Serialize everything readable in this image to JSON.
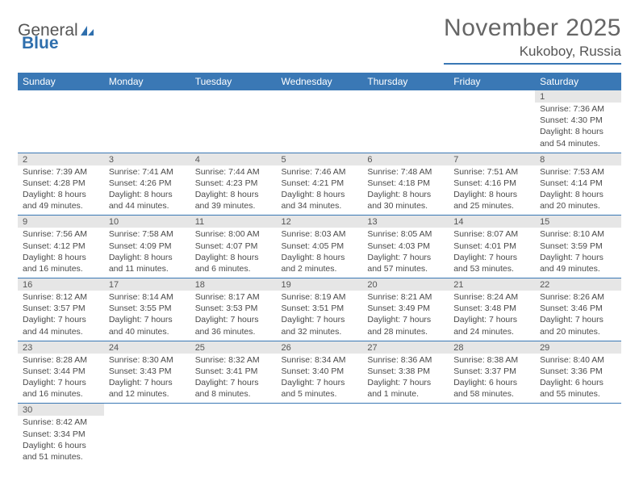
{
  "logo": {
    "part1": "General",
    "part2": "Blue"
  },
  "title": "November 2025",
  "location": "Kukoboy, Russia",
  "colors": {
    "header_bg": "#3a78b5",
    "header_text": "#ffffff",
    "daynum_bg": "#e6e6e6",
    "border": "#3a78b5",
    "text": "#4a4a4a"
  },
  "weekdays": [
    "Sunday",
    "Monday",
    "Tuesday",
    "Wednesday",
    "Thursday",
    "Friday",
    "Saturday"
  ],
  "weeks": [
    [
      null,
      null,
      null,
      null,
      null,
      null,
      {
        "n": "1",
        "sr": "Sunrise: 7:36 AM",
        "ss": "Sunset: 4:30 PM",
        "dl": "Daylight: 8 hours and 54 minutes."
      }
    ],
    [
      {
        "n": "2",
        "sr": "Sunrise: 7:39 AM",
        "ss": "Sunset: 4:28 PM",
        "dl": "Daylight: 8 hours and 49 minutes."
      },
      {
        "n": "3",
        "sr": "Sunrise: 7:41 AM",
        "ss": "Sunset: 4:26 PM",
        "dl": "Daylight: 8 hours and 44 minutes."
      },
      {
        "n": "4",
        "sr": "Sunrise: 7:44 AM",
        "ss": "Sunset: 4:23 PM",
        "dl": "Daylight: 8 hours and 39 minutes."
      },
      {
        "n": "5",
        "sr": "Sunrise: 7:46 AM",
        "ss": "Sunset: 4:21 PM",
        "dl": "Daylight: 8 hours and 34 minutes."
      },
      {
        "n": "6",
        "sr": "Sunrise: 7:48 AM",
        "ss": "Sunset: 4:18 PM",
        "dl": "Daylight: 8 hours and 30 minutes."
      },
      {
        "n": "7",
        "sr": "Sunrise: 7:51 AM",
        "ss": "Sunset: 4:16 PM",
        "dl": "Daylight: 8 hours and 25 minutes."
      },
      {
        "n": "8",
        "sr": "Sunrise: 7:53 AM",
        "ss": "Sunset: 4:14 PM",
        "dl": "Daylight: 8 hours and 20 minutes."
      }
    ],
    [
      {
        "n": "9",
        "sr": "Sunrise: 7:56 AM",
        "ss": "Sunset: 4:12 PM",
        "dl": "Daylight: 8 hours and 16 minutes."
      },
      {
        "n": "10",
        "sr": "Sunrise: 7:58 AM",
        "ss": "Sunset: 4:09 PM",
        "dl": "Daylight: 8 hours and 11 minutes."
      },
      {
        "n": "11",
        "sr": "Sunrise: 8:00 AM",
        "ss": "Sunset: 4:07 PM",
        "dl": "Daylight: 8 hours and 6 minutes."
      },
      {
        "n": "12",
        "sr": "Sunrise: 8:03 AM",
        "ss": "Sunset: 4:05 PM",
        "dl": "Daylight: 8 hours and 2 minutes."
      },
      {
        "n": "13",
        "sr": "Sunrise: 8:05 AM",
        "ss": "Sunset: 4:03 PM",
        "dl": "Daylight: 7 hours and 57 minutes."
      },
      {
        "n": "14",
        "sr": "Sunrise: 8:07 AM",
        "ss": "Sunset: 4:01 PM",
        "dl": "Daylight: 7 hours and 53 minutes."
      },
      {
        "n": "15",
        "sr": "Sunrise: 8:10 AM",
        "ss": "Sunset: 3:59 PM",
        "dl": "Daylight: 7 hours and 49 minutes."
      }
    ],
    [
      {
        "n": "16",
        "sr": "Sunrise: 8:12 AM",
        "ss": "Sunset: 3:57 PM",
        "dl": "Daylight: 7 hours and 44 minutes."
      },
      {
        "n": "17",
        "sr": "Sunrise: 8:14 AM",
        "ss": "Sunset: 3:55 PM",
        "dl": "Daylight: 7 hours and 40 minutes."
      },
      {
        "n": "18",
        "sr": "Sunrise: 8:17 AM",
        "ss": "Sunset: 3:53 PM",
        "dl": "Daylight: 7 hours and 36 minutes."
      },
      {
        "n": "19",
        "sr": "Sunrise: 8:19 AM",
        "ss": "Sunset: 3:51 PM",
        "dl": "Daylight: 7 hours and 32 minutes."
      },
      {
        "n": "20",
        "sr": "Sunrise: 8:21 AM",
        "ss": "Sunset: 3:49 PM",
        "dl": "Daylight: 7 hours and 28 minutes."
      },
      {
        "n": "21",
        "sr": "Sunrise: 8:24 AM",
        "ss": "Sunset: 3:48 PM",
        "dl": "Daylight: 7 hours and 24 minutes."
      },
      {
        "n": "22",
        "sr": "Sunrise: 8:26 AM",
        "ss": "Sunset: 3:46 PM",
        "dl": "Daylight: 7 hours and 20 minutes."
      }
    ],
    [
      {
        "n": "23",
        "sr": "Sunrise: 8:28 AM",
        "ss": "Sunset: 3:44 PM",
        "dl": "Daylight: 7 hours and 16 minutes."
      },
      {
        "n": "24",
        "sr": "Sunrise: 8:30 AM",
        "ss": "Sunset: 3:43 PM",
        "dl": "Daylight: 7 hours and 12 minutes."
      },
      {
        "n": "25",
        "sr": "Sunrise: 8:32 AM",
        "ss": "Sunset: 3:41 PM",
        "dl": "Daylight: 7 hours and 8 minutes."
      },
      {
        "n": "26",
        "sr": "Sunrise: 8:34 AM",
        "ss": "Sunset: 3:40 PM",
        "dl": "Daylight: 7 hours and 5 minutes."
      },
      {
        "n": "27",
        "sr": "Sunrise: 8:36 AM",
        "ss": "Sunset: 3:38 PM",
        "dl": "Daylight: 7 hours and 1 minute."
      },
      {
        "n": "28",
        "sr": "Sunrise: 8:38 AM",
        "ss": "Sunset: 3:37 PM",
        "dl": "Daylight: 6 hours and 58 minutes."
      },
      {
        "n": "29",
        "sr": "Sunrise: 8:40 AM",
        "ss": "Sunset: 3:36 PM",
        "dl": "Daylight: 6 hours and 55 minutes."
      }
    ],
    [
      {
        "n": "30",
        "sr": "Sunrise: 8:42 AM",
        "ss": "Sunset: 3:34 PM",
        "dl": "Daylight: 6 hours and 51 minutes."
      },
      null,
      null,
      null,
      null,
      null,
      null
    ]
  ]
}
